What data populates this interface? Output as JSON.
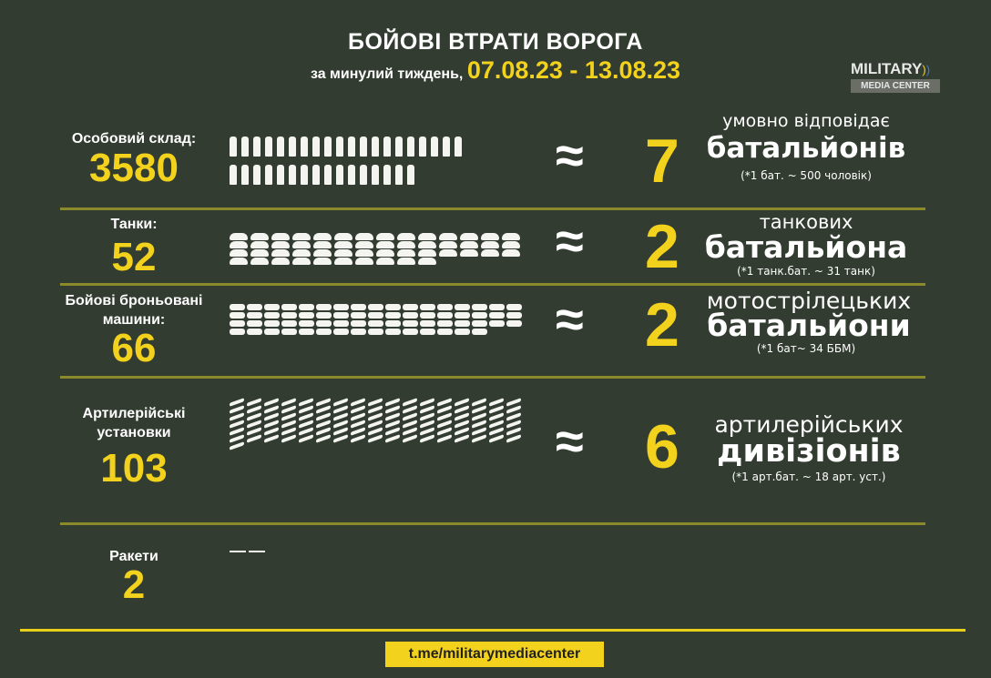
{
  "header": {
    "title": "БОЙОВІ ВТРАТИ ВОРОГА",
    "subtitle": "за минулий тиждень,",
    "dates": "07.08.23 - 13.08.23"
  },
  "logo": {
    "line1": "MILITARY",
    "line2": "MEDIA CENTER"
  },
  "approx_symbol": "≈",
  "rows": [
    {
      "label": "Особовий склад:",
      "value": "3580",
      "icon": "soldier-icon",
      "icon_count": 36,
      "equiv": "7",
      "pre": "умовно відповідає",
      "unit": "батальйонів",
      "note": "(*1 бат. ~ 500 чоловік)"
    },
    {
      "label": "Танки:",
      "value": "52",
      "icon": "tank-icon",
      "icon_count": 52,
      "equiv": "2",
      "pre": "танкових",
      "unit": "батальйона",
      "note": "(*1 танк.бат. ~ 31 танк)"
    },
    {
      "label": "Бойові броньовані машини:",
      "value": "66",
      "icon": "armored-vehicle-icon",
      "icon_count": 66,
      "equiv": "2",
      "pre": "мотострілецьких",
      "unit": "батальйони",
      "note": "(*1 бат~ 34 ББМ)"
    },
    {
      "label": "Артилерійські установки",
      "value": "103",
      "icon": "artillery-icon",
      "icon_count": 103,
      "equiv": "6",
      "pre": "артилерійських",
      "unit": "дивізіонів",
      "note": "(*1 арт.бат. ~ 18 арт. уст.)"
    },
    {
      "label": "Ракети",
      "value": "2",
      "icon": "missile-icon",
      "icon_count": 2
    }
  ],
  "footer": {
    "link": "t.me/militarymediacenter"
  },
  "colors": {
    "background": "#323c30",
    "accent": "#f2d21c",
    "divider": "#8b8a2a"
  }
}
